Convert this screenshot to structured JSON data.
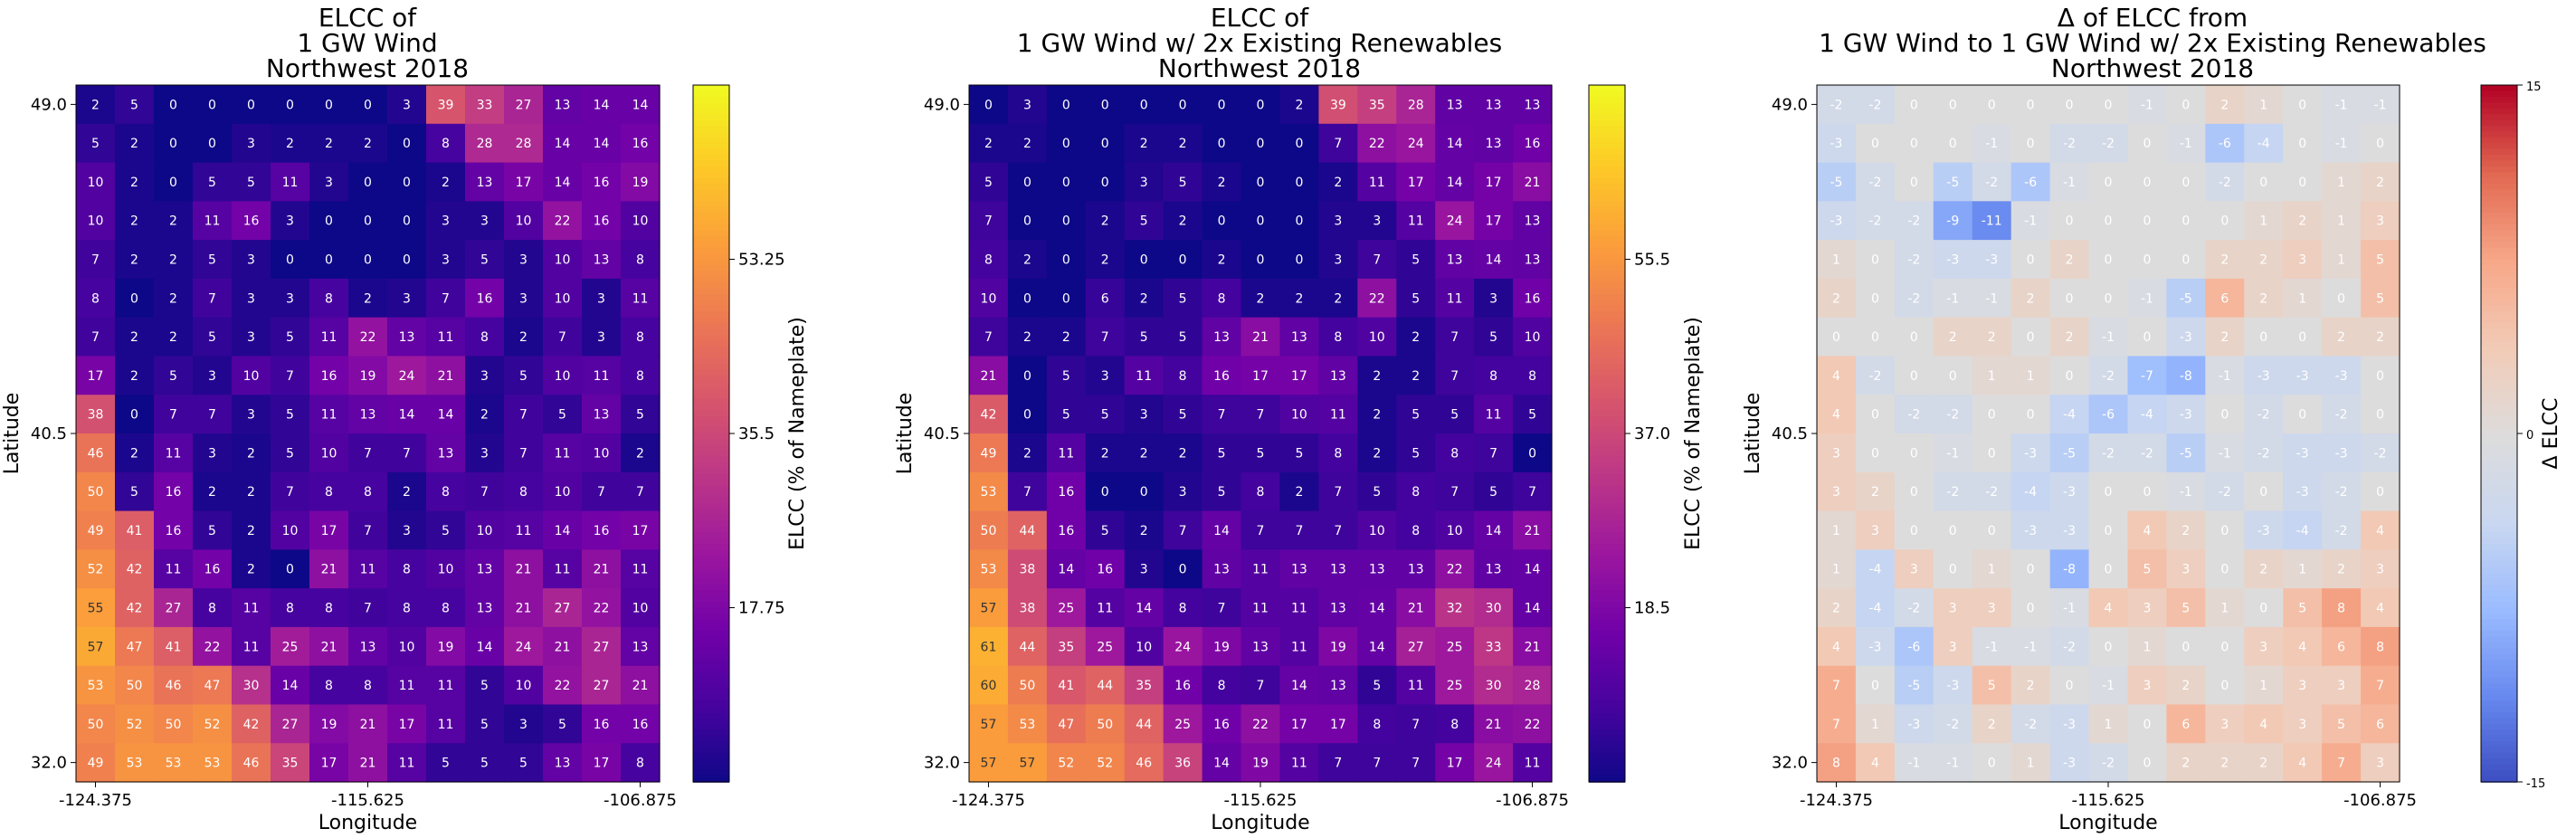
{
  "chart_data": [
    {
      "type": "heatmap",
      "title": "ELCC of\n1 GW Wind\nNorthwest 2018",
      "xlabel": "Longitude",
      "ylabel": "Latitude",
      "xticks": [
        "-124.375",
        "-115.625",
        "-106.875"
      ],
      "yticks": [
        "49.0",
        "40.5",
        "32.0"
      ],
      "colorbar": {
        "label": "ELCC (% of Nameplate)",
        "ticks": [
          "53.25",
          "35.5",
          "17.75"
        ],
        "tick_values": [
          53.25,
          35.5,
          17.75
        ],
        "range": [
          0,
          71
        ],
        "colormap": "plasma"
      },
      "values": [
        [
          2,
          5,
          0,
          0,
          0,
          0,
          0,
          0,
          3,
          39,
          33,
          27,
          13,
          14,
          14
        ],
        [
          5,
          2,
          0,
          0,
          3,
          2,
          2,
          2,
          0,
          8,
          28,
          28,
          14,
          14,
          16
        ],
        [
          10,
          2,
          0,
          5,
          5,
          11,
          3,
          0,
          0,
          2,
          13,
          17,
          14,
          16,
          19
        ],
        [
          10,
          2,
          2,
          11,
          16,
          3,
          0,
          0,
          0,
          3,
          3,
          10,
          22,
          16,
          10
        ],
        [
          7,
          2,
          2,
          5,
          3,
          0,
          0,
          0,
          0,
          3,
          5,
          3,
          10,
          13,
          8
        ],
        [
          8,
          0,
          2,
          7,
          3,
          3,
          8,
          2,
          3,
          7,
          16,
          3,
          10,
          3,
          11
        ],
        [
          7,
          2,
          2,
          5,
          3,
          5,
          11,
          22,
          13,
          11,
          8,
          2,
          7,
          3,
          8
        ],
        [
          17,
          2,
          5,
          3,
          10,
          7,
          16,
          19,
          24,
          21,
          3,
          5,
          10,
          11,
          8
        ],
        [
          38,
          0,
          7,
          7,
          3,
          5,
          11,
          13,
          14,
          14,
          2,
          7,
          5,
          13,
          5
        ],
        [
          46,
          2,
          11,
          3,
          2,
          5,
          10,
          7,
          7,
          13,
          3,
          7,
          11,
          10,
          2
        ],
        [
          50,
          5,
          16,
          2,
          2,
          7,
          8,
          8,
          2,
          8,
          7,
          8,
          10,
          7,
          7
        ],
        [
          49,
          41,
          16,
          5,
          2,
          10,
          17,
          7,
          3,
          5,
          10,
          11,
          14,
          16,
          17
        ],
        [
          52,
          42,
          11,
          16,
          2,
          0,
          21,
          11,
          8,
          10,
          13,
          21,
          11,
          21,
          11
        ],
        [
          55,
          42,
          27,
          8,
          11,
          8,
          8,
          7,
          8,
          8,
          13,
          21,
          27,
          22,
          10
        ],
        [
          57,
          47,
          41,
          22,
          11,
          25,
          21,
          13,
          10,
          19,
          14,
          24,
          21,
          27,
          13
        ],
        [
          53,
          50,
          46,
          47,
          30,
          14,
          8,
          8,
          11,
          11,
          5,
          10,
          22,
          27,
          21
        ],
        [
          50,
          52,
          50,
          52,
          42,
          27,
          19,
          21,
          17,
          11,
          5,
          3,
          5,
          16,
          16
        ],
        [
          49,
          53,
          53,
          53,
          46,
          35,
          17,
          21,
          11,
          5,
          5,
          5,
          13,
          17,
          8
        ]
      ]
    },
    {
      "type": "heatmap",
      "title": "ELCC of\n1 GW Wind w/ 2x Existing Renewables\nNorthwest 2018",
      "xlabel": "Longitude",
      "ylabel": "Latitude",
      "xticks": [
        "-124.375",
        "-115.625",
        "-106.875"
      ],
      "yticks": [
        "49.0",
        "40.5",
        "32.0"
      ],
      "colorbar": {
        "label": "ELCC (% of Nameplate)",
        "ticks": [
          "55.5",
          "37.0",
          "18.5"
        ],
        "tick_values": [
          55.5,
          37.0,
          18.5
        ],
        "range": [
          0,
          74
        ],
        "colormap": "plasma"
      },
      "values": [
        [
          0,
          3,
          0,
          0,
          0,
          0,
          0,
          0,
          2,
          39,
          35,
          28,
          13,
          13,
          13
        ],
        [
          2,
          2,
          0,
          0,
          2,
          2,
          0,
          0,
          0,
          7,
          22,
          24,
          14,
          13,
          16
        ],
        [
          5,
          0,
          0,
          0,
          3,
          5,
          2,
          0,
          0,
          2,
          11,
          17,
          14,
          17,
          21
        ],
        [
          7,
          0,
          0,
          2,
          5,
          2,
          0,
          0,
          0,
          3,
          3,
          11,
          24,
          17,
          13
        ],
        [
          8,
          2,
          0,
          2,
          0,
          0,
          2,
          0,
          0,
          3,
          7,
          5,
          13,
          14,
          13
        ],
        [
          10,
          0,
          0,
          6,
          2,
          5,
          8,
          2,
          2,
          2,
          22,
          5,
          11,
          3,
          16
        ],
        [
          7,
          2,
          2,
          7,
          5,
          5,
          13,
          21,
          13,
          8,
          10,
          2,
          7,
          5,
          10
        ],
        [
          21,
          0,
          5,
          3,
          11,
          8,
          16,
          17,
          17,
          13,
          2,
          2,
          7,
          8,
          8
        ],
        [
          42,
          0,
          5,
          5,
          3,
          5,
          7,
          7,
          10,
          11,
          2,
          5,
          5,
          11,
          5
        ],
        [
          49,
          2,
          11,
          2,
          2,
          2,
          5,
          5,
          5,
          8,
          2,
          5,
          8,
          7,
          0
        ],
        [
          53,
          7,
          16,
          0,
          0,
          3,
          5,
          8,
          2,
          7,
          5,
          8,
          7,
          5,
          7
        ],
        [
          50,
          44,
          16,
          5,
          2,
          7,
          14,
          7,
          7,
          7,
          10,
          8,
          10,
          14,
          21
        ],
        [
          53,
          38,
          14,
          16,
          3,
          0,
          13,
          11,
          13,
          13,
          13,
          13,
          22,
          13,
          14
        ],
        [
          57,
          38,
          25,
          11,
          14,
          8,
          7,
          11,
          11,
          13,
          14,
          21,
          32,
          30,
          14
        ],
        [
          61,
          44,
          35,
          25,
          10,
          24,
          19,
          13,
          11,
          19,
          14,
          27,
          25,
          33,
          21
        ],
        [
          60,
          50,
          41,
          44,
          35,
          16,
          8,
          7,
          14,
          13,
          5,
          11,
          25,
          30,
          28
        ],
        [
          57,
          53,
          47,
          50,
          44,
          25,
          16,
          22,
          17,
          17,
          8,
          7,
          8,
          21,
          22
        ],
        [
          57,
          57,
          52,
          52,
          46,
          36,
          14,
          19,
          11,
          7,
          7,
          7,
          17,
          24,
          11
        ]
      ]
    },
    {
      "type": "heatmap",
      "title": "Δ of ELCC from\n1 GW Wind to 1 GW Wind w/ 2x Existing Renewables\nNorthwest 2018",
      "xlabel": "Longitude",
      "ylabel": "Latitude",
      "xticks": [
        "-124.375",
        "-115.625",
        "-106.875"
      ],
      "yticks": [
        "49.0",
        "40.5",
        "32.0"
      ],
      "colorbar": {
        "label": "Δ ELCC",
        "ticks": [
          "15",
          "0",
          "-15"
        ],
        "tick_values": [
          15,
          0,
          -15
        ],
        "range": [
          -15,
          15
        ],
        "colormap": "coolwarm"
      },
      "values": [
        [
          -2,
          -2,
          0,
          0,
          0,
          0,
          0,
          0,
          -1,
          0,
          2,
          1,
          0,
          -1,
          -1
        ],
        [
          -3,
          0,
          0,
          0,
          -1,
          0,
          -2,
          -2,
          0,
          -1,
          -6,
          -4,
          0,
          -1,
          0
        ],
        [
          -5,
          -2,
          0,
          -5,
          -2,
          -6,
          -1,
          0,
          0,
          0,
          -2,
          0,
          0,
          1,
          2
        ],
        [
          -3,
          -2,
          -2,
          -9,
          -11,
          -1,
          0,
          0,
          0,
          0,
          0,
          1,
          2,
          1,
          3
        ],
        [
          1,
          0,
          -2,
          -3,
          -3,
          0,
          2,
          0,
          0,
          0,
          2,
          2,
          3,
          1,
          5
        ],
        [
          2,
          0,
          -2,
          -1,
          -1,
          2,
          0,
          0,
          -1,
          -5,
          6,
          2,
          1,
          0,
          5
        ],
        [
          0,
          0,
          0,
          2,
          2,
          0,
          2,
          -1,
          0,
          -3,
          2,
          0,
          0,
          2,
          2
        ],
        [
          4,
          -2,
          0,
          0,
          1,
          1,
          0,
          -2,
          -7,
          -8,
          -1,
          -3,
          -3,
          -3,
          0
        ],
        [
          4,
          0,
          -2,
          -2,
          0,
          0,
          -4,
          -6,
          -4,
          -3,
          0,
          -2,
          0,
          -2,
          0
        ],
        [
          3,
          0,
          0,
          -1,
          0,
          -3,
          -5,
          -2,
          -2,
          -5,
          -1,
          -2,
          -3,
          -3,
          -2
        ],
        [
          3,
          2,
          0,
          -2,
          -2,
          -4,
          -3,
          0,
          0,
          -1,
          -2,
          0,
          -3,
          -2,
          0
        ],
        [
          1,
          3,
          0,
          0,
          0,
          -3,
          -3,
          0,
          4,
          2,
          0,
          -3,
          -4,
          -2,
          4
        ],
        [
          1,
          -4,
          3,
          0,
          1,
          0,
          -8,
          0,
          5,
          3,
          0,
          2,
          1,
          2,
          3
        ],
        [
          2,
          -4,
          -2,
          3,
          3,
          0,
          -1,
          4,
          3,
          5,
          1,
          0,
          5,
          8,
          4
        ],
        [
          4,
          -3,
          -6,
          3,
          -1,
          -1,
          -2,
          0,
          1,
          0,
          0,
          3,
          4,
          6,
          8
        ],
        [
          7,
          0,
          -5,
          -3,
          5,
          2,
          0,
          -1,
          3,
          2,
          0,
          1,
          3,
          3,
          7
        ],
        [
          7,
          1,
          -3,
          -2,
          2,
          -2,
          -3,
          1,
          0,
          6,
          3,
          4,
          3,
          5,
          6
        ],
        [
          8,
          4,
          -1,
          -1,
          0,
          1,
          -3,
          -2,
          0,
          2,
          2,
          2,
          4,
          7,
          3
        ]
      ]
    }
  ]
}
